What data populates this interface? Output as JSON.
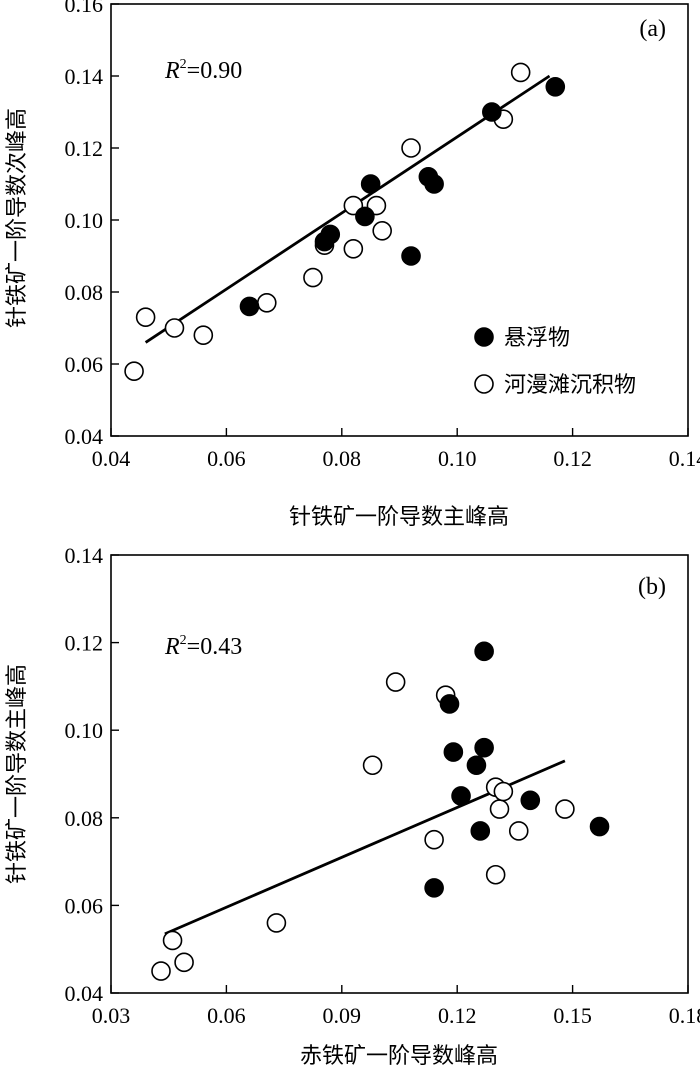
{
  "chart_data": [
    {
      "type": "scatter",
      "panel": "(a)",
      "xlabel": "针铁矿一阶导数主峰高",
      "ylabel": "针铁矿一阶导数次峰高",
      "xlim": [
        0.04,
        0.14
      ],
      "ylim": [
        0.04,
        0.16
      ],
      "xticks": [
        "0.04",
        "0.06",
        "0.08",
        "0.10",
        "0.12",
        "0.14"
      ],
      "yticks": [
        "0.04",
        "0.06",
        "0.08",
        "0.10",
        "0.12",
        "0.14",
        "0.16"
      ],
      "r2_symbol": "R",
      "r2_sup": "2",
      "r2_value": "=0.90",
      "legend_position": "bottom-right",
      "series": [
        {
          "name": "悬浮物",
          "marker": "filled-circle",
          "x": [
            0.064,
            0.077,
            0.078,
            0.084,
            0.085,
            0.092,
            0.095,
            0.096,
            0.106,
            0.117
          ],
          "y": [
            0.076,
            0.094,
            0.096,
            0.101,
            0.11,
            0.09,
            0.112,
            0.11,
            0.13,
            0.137
          ]
        },
        {
          "name": "河漫滩沉积物",
          "marker": "open-circle",
          "x": [
            0.044,
            0.046,
            0.051,
            0.056,
            0.067,
            0.075,
            0.077,
            0.082,
            0.082,
            0.086,
            0.087,
            0.092,
            0.108,
            0.111
          ],
          "y": [
            0.058,
            0.073,
            0.07,
            0.068,
            0.077,
            0.084,
            0.093,
            0.092,
            0.104,
            0.104,
            0.097,
            0.12,
            0.128,
            0.141
          ]
        }
      ],
      "fit_line": {
        "x": [
          0.046,
          0.116
        ],
        "y": [
          0.066,
          0.14
        ]
      }
    },
    {
      "type": "scatter",
      "panel": "(b)",
      "xlabel": "赤铁矿一阶导数峰高",
      "ylabel": "针铁矿一阶导数主峰高",
      "xlim": [
        0.03,
        0.18
      ],
      "ylim": [
        0.04,
        0.14
      ],
      "xticks": [
        "0.03",
        "0.06",
        "0.09",
        "0.12",
        "0.15",
        "0.18"
      ],
      "yticks": [
        "0.04",
        "0.06",
        "0.08",
        "0.10",
        "0.12",
        "0.14"
      ],
      "r2_symbol": "R",
      "r2_sup": "2",
      "r2_value": "=0.43",
      "series": [
        {
          "name": "悬浮物",
          "marker": "filled-circle",
          "x": [
            0.114,
            0.118,
            0.119,
            0.121,
            0.125,
            0.126,
            0.127,
            0.127,
            0.139,
            0.157
          ],
          "y": [
            0.064,
            0.106,
            0.095,
            0.085,
            0.092,
            0.077,
            0.118,
            0.096,
            0.084,
            0.078
          ]
        },
        {
          "name": "河漫滩沉积物",
          "marker": "open-circle",
          "x": [
            0.043,
            0.046,
            0.049,
            0.073,
            0.098,
            0.104,
            0.114,
            0.117,
            0.13,
            0.131,
            0.132,
            0.136,
            0.13,
            0.148
          ],
          "y": [
            0.045,
            0.052,
            0.047,
            0.056,
            0.092,
            0.111,
            0.075,
            0.108,
            0.087,
            0.082,
            0.086,
            0.077,
            0.067,
            0.082
          ]
        }
      ],
      "fit_line": {
        "x": [
          0.044,
          0.148
        ],
        "y": [
          0.0535,
          0.093
        ]
      }
    }
  ]
}
